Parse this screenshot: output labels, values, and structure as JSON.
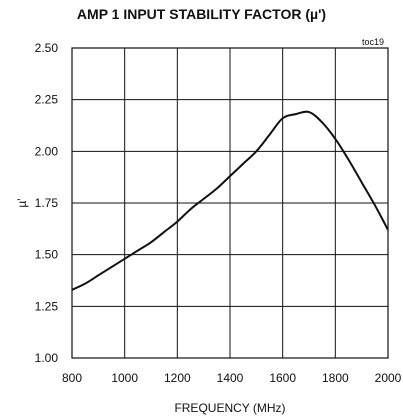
{
  "chart_data": {
    "type": "line",
    "title": "AMP 1 INPUT STABILITY FACTOR (µ')",
    "corner_label": "toc19",
    "xlabel": "FREQUENCY (MHz)",
    "ylabel": "µ'",
    "xlim": [
      800,
      2000
    ],
    "ylim": [
      1.0,
      2.5
    ],
    "x_ticks": [
      "800",
      "1000",
      "1200",
      "1400",
      "1600",
      "1800",
      "2000"
    ],
    "y_ticks": [
      "1.00",
      "1.25",
      "1.50",
      "1.75",
      "2.00",
      "2.25",
      "2.50"
    ],
    "grid": true,
    "series": [
      {
        "x": [
          800,
          850,
          900,
          950,
          1000,
          1050,
          1100,
          1150,
          1200,
          1250,
          1300,
          1350,
          1400,
          1450,
          1500,
          1550,
          1600,
          1650,
          1700,
          1750,
          1800,
          1850,
          1900,
          1950,
          2000
        ],
        "y": [
          1.33,
          1.36,
          1.4,
          1.44,
          1.48,
          1.52,
          1.56,
          1.61,
          1.66,
          1.72,
          1.77,
          1.82,
          1.88,
          1.94,
          2.0,
          2.08,
          2.16,
          2.18,
          2.19,
          2.14,
          2.06,
          1.96,
          1.85,
          1.74,
          1.62
        ]
      }
    ]
  }
}
